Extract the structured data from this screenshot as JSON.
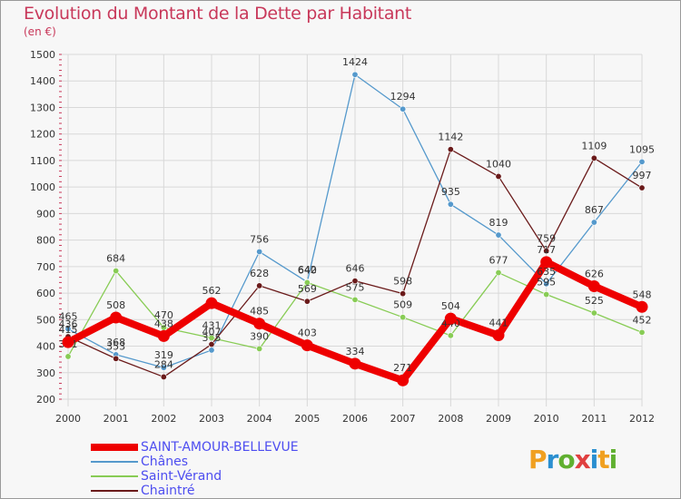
{
  "header": {
    "title": "Evolution du Montant de la Dette par Habitant",
    "unit": "(en €)"
  },
  "logo": {
    "text": "Proxiti",
    "colors": [
      "#f0a020",
      "#2a8fd0",
      "#60b030",
      "#e04040",
      "#2a8fd0",
      "#f0a020",
      "#60b030"
    ]
  },
  "chart_data": {
    "type": "line",
    "title": "Evolution du Montant de la Dette par Habitant",
    "ylabel": "(en €)",
    "xlabel": "",
    "ylim": [
      200,
      1500
    ],
    "yticks": [
      200,
      300,
      400,
      500,
      600,
      700,
      800,
      900,
      1000,
      1100,
      1200,
      1300,
      1400,
      1500
    ],
    "categories": [
      "2000",
      "2001",
      "2002",
      "2003",
      "2004",
      "2005",
      "2006",
      "2007",
      "2008",
      "2009",
      "2010",
      "2011",
      "2012"
    ],
    "grid": true,
    "legend_position": "bottom-left",
    "series": [
      {
        "name": "Chânes",
        "color": "#5599cc",
        "values": [
          465,
          368,
          319,
          385,
          756,
          642,
          1424,
          1294,
          935,
          819,
          635,
          867,
          1095
        ]
      },
      {
        "name": "Saint-Vérand",
        "color": "#88cc55",
        "values": [
          361,
          684,
          470,
          431,
          390,
          640,
          575,
          509,
          440,
          677,
          595,
          525,
          452
        ]
      },
      {
        "name": "Chaintré",
        "color": "#6a1a1a",
        "values": [
          436,
          353,
          284,
          407,
          628,
          569,
          646,
          598,
          1142,
          1040,
          759,
          1109,
          997
        ]
      },
      {
        "name": "SAINT-AMOUR-BELLEVUE",
        "color": "#ee0000",
        "values": [
          415,
          508,
          438,
          562,
          485,
          403,
          334,
          271,
          504,
          441,
          717,
          626,
          548
        ]
      }
    ]
  }
}
